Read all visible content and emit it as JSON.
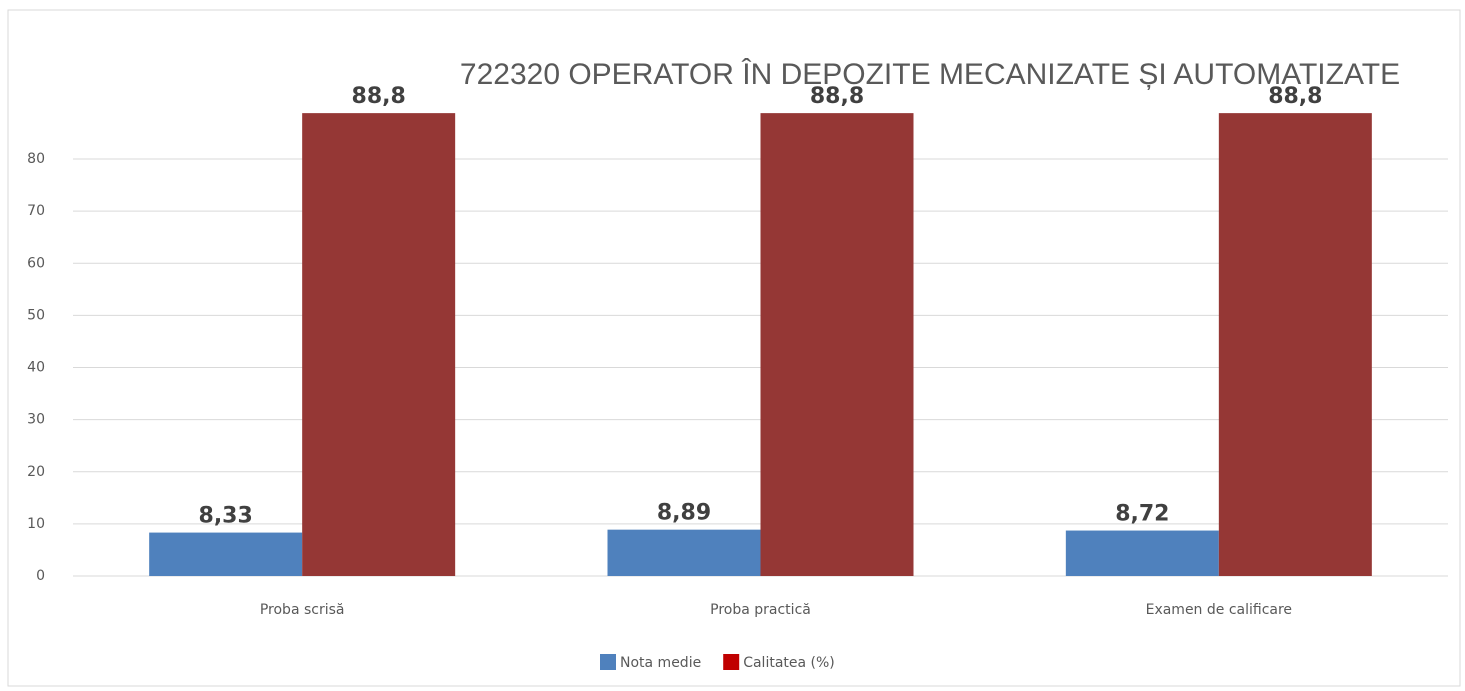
{
  "chart_data": {
    "type": "bar",
    "title": "722320  OPERATOR ÎN DEPOZITE MECANIZATE ȘI AUTOMATIZATE",
    "categories": [
      "Proba scrisă",
      "Proba practică",
      "Examen de calificare"
    ],
    "series": [
      {
        "name": "Nota medie",
        "color": "#4f81bd",
        "values": [
          8.33,
          8.89,
          8.72
        ],
        "value_labels": [
          "8,33",
          "8,89",
          "8,72"
        ]
      },
      {
        "name": "Calitatea (%)",
        "color": "#953735",
        "values": [
          88.8,
          88.8,
          88.8
        ],
        "value_labels": [
          "88,8",
          "88,8",
          "88,8"
        ]
      }
    ],
    "ylim": [
      0,
      80
    ],
    "yticks": [
      0,
      10,
      20,
      30,
      40,
      50,
      60,
      70,
      80
    ],
    "grid": true,
    "legend": "bottom"
  }
}
